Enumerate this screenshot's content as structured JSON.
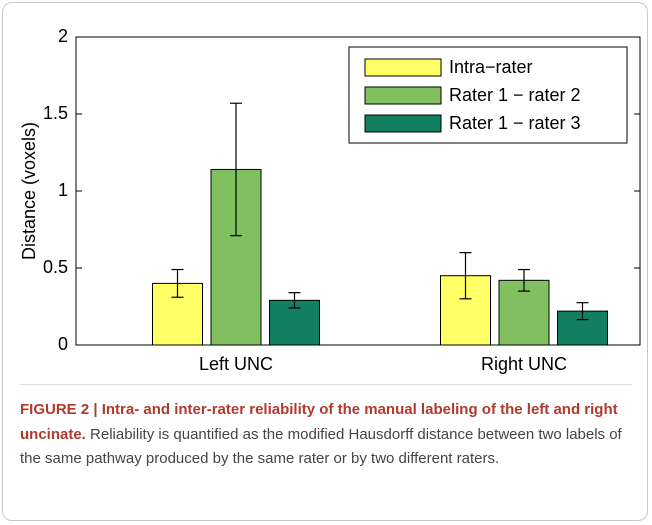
{
  "chart_data": {
    "type": "bar",
    "ylabel": "Distance (voxels)",
    "categories": [
      "Left UNC",
      "Right UNC"
    ],
    "series": [
      {
        "name": "Intra−rater",
        "color": "#ffff66",
        "values": [
          0.4,
          0.45
        ],
        "errors": [
          0.09,
          0.15
        ]
      },
      {
        "name": "Rater 1 − rater 2",
        "color": "#80c060",
        "values": [
          1.14,
          0.42
        ],
        "errors": [
          0.43,
          0.07
        ]
      },
      {
        "name": "Rater 1 − rater 3",
        "color": "#128060",
        "values": [
          0.29,
          0.22
        ],
        "errors": [
          0.05,
          0.055
        ]
      }
    ],
    "ylim": [
      0,
      2
    ],
    "yticks": [
      0,
      0.5,
      1,
      1.5,
      2
    ],
    "grid": false,
    "legend": "upper right"
  },
  "caption": {
    "title": "FIGURE 2 | Intra- and inter-rater reliability of the manual labeling of the left and right uncinate.",
    "text": "Reliability is quantified as the modified Hausdorff distance between two labels of the same pathway produced by the same rater or by two different raters."
  }
}
